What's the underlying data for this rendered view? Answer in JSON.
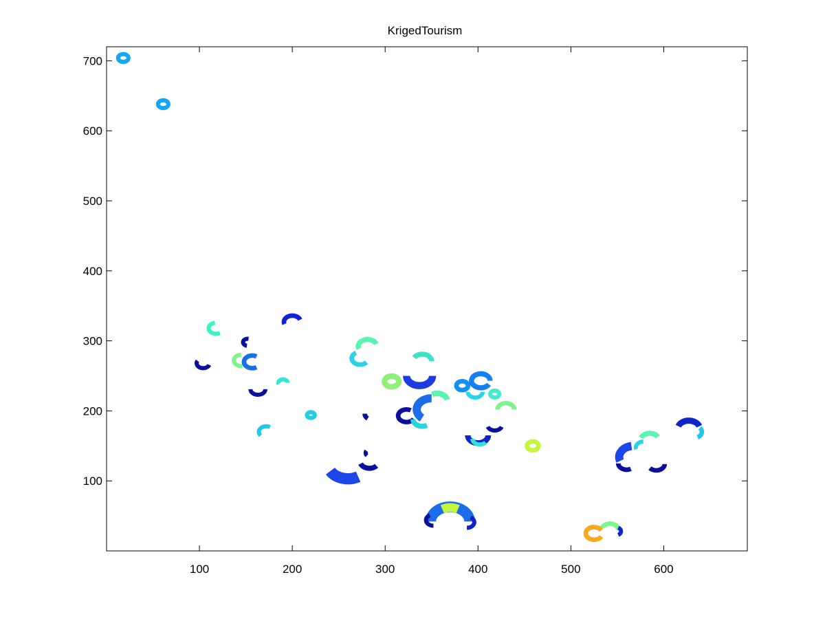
{
  "chart_data": {
    "type": "scatter",
    "title": "KrigedTourism",
    "xlabel": "",
    "ylabel": "",
    "xlim": [
      0,
      690
    ],
    "ylim": [
      0,
      720
    ],
    "x_ticks": [
      100,
      200,
      300,
      400,
      500,
      600
    ],
    "y_ticks": [
      100,
      200,
      300,
      400,
      500,
      600,
      700
    ],
    "grid": false,
    "box": true,
    "colormap": "jet",
    "blobs": [
      {
        "x": 18,
        "y": 704,
        "r": 8,
        "start": 0,
        "end": 360,
        "color": "#15a6f4"
      },
      {
        "x": 61,
        "y": 638,
        "r": 8,
        "start": 0,
        "end": 360,
        "color": "#15a6f4"
      },
      {
        "x": 118,
        "y": 318,
        "r": 8,
        "start": 100,
        "end": 300,
        "color": "#3df2c9"
      },
      {
        "x": 200,
        "y": 327,
        "r": 9,
        "start": 20,
        "end": 200,
        "color": "#1022d8"
      },
      {
        "x": 104,
        "y": 268,
        "r": 7,
        "start": 150,
        "end": 340,
        "color": "#0b0f9c"
      },
      {
        "x": 152,
        "y": 298,
        "r": 5,
        "start": 80,
        "end": 260,
        "color": "#0b0f9c"
      },
      {
        "x": 145,
        "y": 272,
        "r": 8,
        "start": 90,
        "end": 280,
        "color": "#7ef58c"
      },
      {
        "x": 157,
        "y": 270,
        "r": 9,
        "start": 60,
        "end": 300,
        "color": "#1c6ee8"
      },
      {
        "x": 163,
        "y": 231,
        "r": 8,
        "start": 180,
        "end": 360,
        "color": "#0b0f9c"
      },
      {
        "x": 190,
        "y": 240,
        "r": 5,
        "start": 0,
        "end": 200,
        "color": "#31e6d6"
      },
      {
        "x": 172,
        "y": 170,
        "r": 8,
        "start": 60,
        "end": 220,
        "color": "#23c8e8"
      },
      {
        "x": 220,
        "y": 194,
        "r": 6,
        "start": 0,
        "end": 360,
        "color": "#22cde6"
      },
      {
        "x": 281,
        "y": 292,
        "r": 10,
        "start": 20,
        "end": 200,
        "color": "#5bf4b2"
      },
      {
        "x": 273,
        "y": 275,
        "r": 9,
        "start": 120,
        "end": 320,
        "color": "#2ad2e2"
      },
      {
        "x": 307,
        "y": 242,
        "r": 11,
        "start": 0,
        "end": 360,
        "color": "#8ff07a"
      },
      {
        "x": 337,
        "y": 250,
        "r": 14,
        "start": 180,
        "end": 360,
        "color": "#1c3ce0"
      },
      {
        "x": 340,
        "y": 271,
        "r": 10,
        "start": 0,
        "end": 150,
        "color": "#3de2c8"
      },
      {
        "x": 323,
        "y": 193,
        "r": 9,
        "start": 60,
        "end": 330,
        "color": "#0b0f9c"
      },
      {
        "x": 350,
        "y": 202,
        "r": 16,
        "start": 90,
        "end": 230,
        "color": "#1c6ee8"
      },
      {
        "x": 356,
        "y": 214,
        "r": 11,
        "start": 10,
        "end": 120,
        "color": "#5bf4b2"
      },
      {
        "x": 340,
        "y": 188,
        "r": 10,
        "start": 180,
        "end": 300,
        "color": "#2ad2e2"
      },
      {
        "x": 287,
        "y": 196,
        "r": 9,
        "start": 180,
        "end": 230,
        "color": "#0b0f9c"
      },
      {
        "x": 383,
        "y": 236,
        "r": 9,
        "start": 0,
        "end": 360,
        "color": "#1590f0"
      },
      {
        "x": 403,
        "y": 243,
        "r": 10,
        "start": 0,
        "end": 330,
        "color": "#1580f0"
      },
      {
        "x": 397,
        "y": 227,
        "r": 8,
        "start": 180,
        "end": 360,
        "color": "#23d6e8"
      },
      {
        "x": 418,
        "y": 224,
        "r": 7,
        "start": 0,
        "end": 360,
        "color": "#44eacf"
      },
      {
        "x": 430,
        "y": 202,
        "r": 9,
        "start": 0,
        "end": 180,
        "color": "#7ef58c"
      },
      {
        "x": 400,
        "y": 165,
        "r": 11,
        "start": 180,
        "end": 360,
        "color": "#1025c8"
      },
      {
        "x": 402,
        "y": 160,
        "r": 8,
        "start": 180,
        "end": 320,
        "color": "#33e2d0"
      },
      {
        "x": 418,
        "y": 180,
        "r": 8,
        "start": 200,
        "end": 340,
        "color": "#0b0f9c"
      },
      {
        "x": 459,
        "y": 150,
        "r": 9,
        "start": 0,
        "end": 360,
        "color": "#c6f53d"
      },
      {
        "x": 260,
        "y": 125,
        "r": 22,
        "start": 210,
        "end": 300,
        "color": "#1c46e8"
      },
      {
        "x": 283,
        "y": 128,
        "r": 10,
        "start": 200,
        "end": 320,
        "color": "#0b0f9c"
      },
      {
        "x": 285,
        "y": 140,
        "r": 6,
        "start": 150,
        "end": 220,
        "color": "#0b0f9c"
      },
      {
        "x": 370,
        "y": 42,
        "r": 21,
        "start": 0,
        "end": 180,
        "color": "#1c6ee8"
      },
      {
        "x": 370,
        "y": 45,
        "r": 17,
        "start": 60,
        "end": 120,
        "color": "#c6f53d"
      },
      {
        "x": 352,
        "y": 44,
        "r": 8,
        "start": 120,
        "end": 270,
        "color": "#0b0f9c"
      },
      {
        "x": 388,
        "y": 41,
        "r": 8,
        "start": 270,
        "end": 420,
        "color": "#1025c8"
      },
      {
        "x": 525,
        "y": 25,
        "r": 9,
        "start": 30,
        "end": 330,
        "color": "#f7a81c"
      },
      {
        "x": 542,
        "y": 30,
        "r": 9,
        "start": 0,
        "end": 160,
        "color": "#7ef58c"
      },
      {
        "x": 548,
        "y": 28,
        "r": 6,
        "start": 300,
        "end": 420,
        "color": "#1025c8"
      },
      {
        "x": 568,
        "y": 134,
        "r": 16,
        "start": 100,
        "end": 200,
        "color": "#1c46e8"
      },
      {
        "x": 560,
        "y": 125,
        "r": 9,
        "start": 180,
        "end": 300,
        "color": "#0b0f9c"
      },
      {
        "x": 585,
        "y": 158,
        "r": 10,
        "start": 30,
        "end": 160,
        "color": "#5bf4b2"
      },
      {
        "x": 578,
        "y": 148,
        "r": 8,
        "start": 90,
        "end": 200,
        "color": "#2ad2e2"
      },
      {
        "x": 592,
        "y": 124,
        "r": 9,
        "start": 220,
        "end": 360,
        "color": "#0b0f9c"
      },
      {
        "x": 627,
        "y": 174,
        "r": 12,
        "start": 20,
        "end": 160,
        "color": "#1025c8"
      },
      {
        "x": 632,
        "y": 170,
        "r": 9,
        "start": 300,
        "end": 400,
        "color": "#23c8e8"
      }
    ]
  }
}
